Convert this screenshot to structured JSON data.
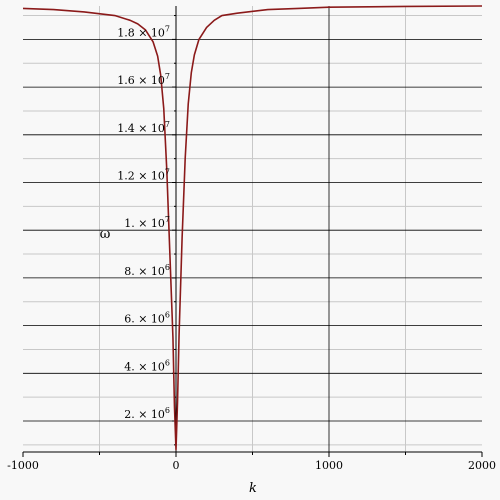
{
  "chart_data": {
    "type": "line",
    "title": "",
    "xlabel": "k",
    "ylabel": "ω",
    "xlim": [
      -1000,
      2000
    ],
    "ylim": [
      700000,
      19400000
    ],
    "grid": true,
    "x_ticks": [
      {
        "value": -1000,
        "label": "-1000"
      },
      {
        "value": 0,
        "label": "0"
      },
      {
        "value": 1000,
        "label": "1000"
      },
      {
        "value": 2000,
        "label": "2000"
      }
    ],
    "y_ticks": [
      {
        "value": 2000000,
        "mant": "2.",
        "exp": "6"
      },
      {
        "value": 4000000,
        "mant": "4.",
        "exp": "6"
      },
      {
        "value": 6000000,
        "mant": "6.",
        "exp": "6"
      },
      {
        "value": 8000000,
        "mant": "8.",
        "exp": "6"
      },
      {
        "value": 10000000,
        "mant": "1.",
        "exp": "7"
      },
      {
        "value": 12000000,
        "mant": "1.2",
        "exp": "7"
      },
      {
        "value": 14000000,
        "mant": "1.4",
        "exp": "7"
      },
      {
        "value": 16000000,
        "mant": "1.6",
        "exp": "7"
      },
      {
        "value": 18000000,
        "mant": "1.8",
        "exp": "7"
      }
    ],
    "series": [
      {
        "color": "#8b1a1a",
        "x": [
          -1000,
          -800,
          -600,
          -400,
          -300,
          -250,
          -200,
          -150,
          -120,
          -100,
          -80,
          -60,
          -40,
          -20,
          -10,
          0,
          10,
          20,
          40,
          60,
          80,
          100,
          120,
          150,
          200,
          250,
          300,
          400,
          600,
          800,
          1000,
          1500,
          2000
        ],
        "y": [
          19300000,
          19250000,
          19150000,
          19000000,
          18800000,
          18650000,
          18400000,
          17900000,
          17300000,
          16500000,
          15100000,
          12500000,
          9000000,
          5500000,
          2600000,
          800000,
          2800000,
          5600000,
          9700000,
          13000000,
          15300000,
          16600000,
          17350000,
          18000000,
          18500000,
          18800000,
          19000000,
          19100000,
          19250000,
          19300000,
          19350000,
          19380000,
          19400000
        ]
      }
    ]
  }
}
